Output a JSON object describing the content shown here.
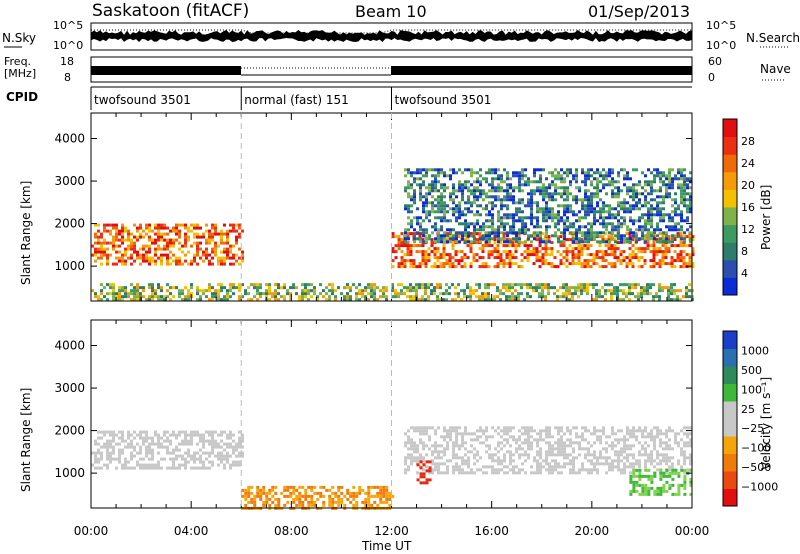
{
  "header": {
    "title": "Saskatoon (fitACF)",
    "beam": "Beam 10",
    "date": "01/Sep/2013"
  },
  "strip_panels": {
    "nsky": {
      "label": "N.Sky",
      "tick_top": "10^5",
      "tick_bottom": "10^0"
    },
    "nsearch": {
      "label": "N.Search",
      "tick_top": "10^5",
      "tick_bottom": "10^0"
    },
    "freq": {
      "label_line1": "Freq.",
      "label_line2": "[MHz]",
      "tick_top": "18",
      "tick_bottom": "8"
    },
    "nave": {
      "label": "Nave",
      "tick_top": "60",
      "tick_bottom": "0"
    },
    "cpid": {
      "label": "CPID",
      "segments": [
        {
          "name": "twofsound 3501",
          "start_hour": 0,
          "end_hour": 6
        },
        {
          "name": "normal (fast) 151",
          "start_hour": 6,
          "end_hour": 12
        },
        {
          "name": "twofsound 3501",
          "start_hour": 12,
          "end_hour": 24
        }
      ]
    }
  },
  "chart_data": [
    {
      "type": "heatmap",
      "name": "Power",
      "title": "",
      "xlabel": "Time UT",
      "ylabel": "Slant Range [km]",
      "xlim": [
        0,
        24
      ],
      "ylim": [
        180,
        4600
      ],
      "x_ticks": [
        "00:00",
        "04:00",
        "08:00",
        "12:00",
        "16:00",
        "20:00",
        "00:00"
      ],
      "y_ticks": [
        1000,
        2000,
        3000,
        4000
      ],
      "colorbar": {
        "label": "Power [dB]",
        "ticks": [
          "28",
          "24",
          "20",
          "16",
          "12",
          "8",
          "4"
        ],
        "colors": [
          "#0b2bd6",
          "#2a4fb0",
          "#2e7d6b",
          "#3f9a62",
          "#7fb24a",
          "#f2c200",
          "#f59b0a",
          "#f06a0a",
          "#ea2f12",
          "#e10f10"
        ]
      },
      "features": [
        {
          "desc": "band",
          "from_hour": 0.0,
          "to_hour": 6.0,
          "range_km": [
            1050,
            2000
          ],
          "level": "high"
        },
        {
          "desc": "band",
          "from_hour": 12.0,
          "to_hour": 24.0,
          "range_km": [
            1000,
            1800
          ],
          "level": "high"
        },
        {
          "desc": "scatter",
          "from_hour": 12.5,
          "to_hour": 24.0,
          "range_km": [
            1600,
            3300
          ],
          "level": "low"
        },
        {
          "desc": "near-range",
          "from_hour": 0.0,
          "to_hour": 24.0,
          "range_km": [
            200,
            600
          ],
          "level": "medium"
        }
      ]
    },
    {
      "type": "heatmap",
      "name": "Velocity",
      "title": "",
      "xlabel": "Time UT",
      "ylabel": "Slant Range [km]",
      "xlim": [
        0,
        24
      ],
      "ylim": [
        180,
        4600
      ],
      "x_ticks": [
        "00:00",
        "04:00",
        "08:00",
        "12:00",
        "16:00",
        "20:00",
        "00:00"
      ],
      "y_ticks": [
        1000,
        2000,
        3000,
        4000
      ],
      "colorbar": {
        "label": "Velocity [m s⁻¹]",
        "ticks": [
          "1000",
          "500",
          "100",
          "25",
          "−25",
          "−100",
          "−500",
          "−1000"
        ],
        "colors": [
          "#e10f10",
          "#ea4a12",
          "#f07a0a",
          "#f5a50a",
          "#c8c8c8",
          "#c8c8c8",
          "#3fb83a",
          "#2e8a5a",
          "#2a6fb0",
          "#1a3fc8"
        ]
      },
      "features": [
        {
          "desc": "grey ground scatter",
          "from_hour": 0.0,
          "to_hour": 6.0,
          "range_km": [
            1100,
            2000
          ],
          "velocity": 0
        },
        {
          "desc": "grey ground scatter",
          "from_hour": 12.5,
          "to_hour": 24.0,
          "range_km": [
            1000,
            2100
          ],
          "velocity": 0
        },
        {
          "desc": "negative",
          "from_hour": 6.0,
          "to_hour": 12.0,
          "range_km": [
            200,
            700
          ],
          "velocity": -150
        },
        {
          "desc": "negative patch",
          "from_hour": 13.0,
          "to_hour": 13.5,
          "range_km": [
            800,
            1300
          ],
          "velocity": -800
        },
        {
          "desc": "positive",
          "from_hour": 21.5,
          "to_hour": 24.0,
          "range_km": [
            500,
            1100
          ],
          "velocity": 150
        }
      ]
    }
  ]
}
